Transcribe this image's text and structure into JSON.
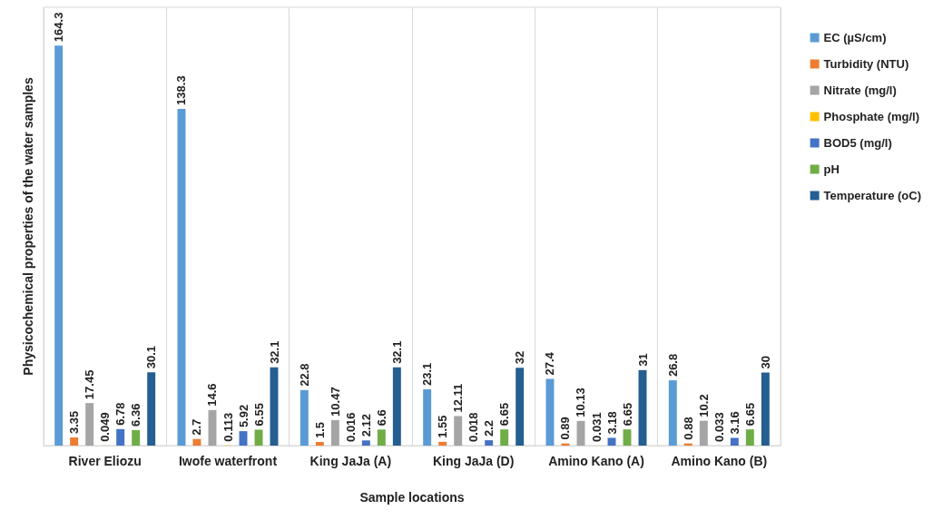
{
  "chart_data": {
    "type": "bar",
    "xlabel": "Sample locations",
    "ylabel": "Physicochemical properties of the water samples",
    "categories": [
      "River Eliozu",
      "Iwofe waterfront",
      "King JaJa (A)",
      "King JaJa (D)",
      "Amino Kano (A)",
      "Amino Kano (B)"
    ],
    "series": [
      {
        "name": "EC (µS/cm)",
        "color": "#5b9bd5",
        "values": [
          164.3,
          138.3,
          22.8,
          23.1,
          27.4,
          26.8
        ]
      },
      {
        "name": "Turbidity (NTU)",
        "color": "#ed7d31",
        "values": [
          3.35,
          2.7,
          1.5,
          1.55,
          0.89,
          0.88
        ]
      },
      {
        "name": "Nitrate (mg/l)",
        "color": "#a5a5a5",
        "values": [
          17.45,
          14.6,
          10.47,
          12.11,
          10.13,
          10.2
        ]
      },
      {
        "name": "Phosphate (mg/l)",
        "color": "#ffc000",
        "values": [
          0.049,
          0.113,
          0.016,
          0.018,
          0.031,
          0.033
        ]
      },
      {
        "name": "BOD5 (mg/l)",
        "color": "#4472c4",
        "values": [
          6.78,
          5.92,
          2.12,
          2.2,
          3.18,
          3.16
        ]
      },
      {
        "name": "pH",
        "color": "#70ad47",
        "values": [
          6.36,
          6.55,
          6.6,
          6.65,
          6.65,
          6.65
        ]
      },
      {
        "name": "Temperature (oC)",
        "color": "#255e91",
        "values": [
          30.1,
          32.1,
          32.1,
          32,
          31,
          30
        ]
      }
    ],
    "data_labels": true,
    "grid": "x",
    "legend": "right"
  }
}
